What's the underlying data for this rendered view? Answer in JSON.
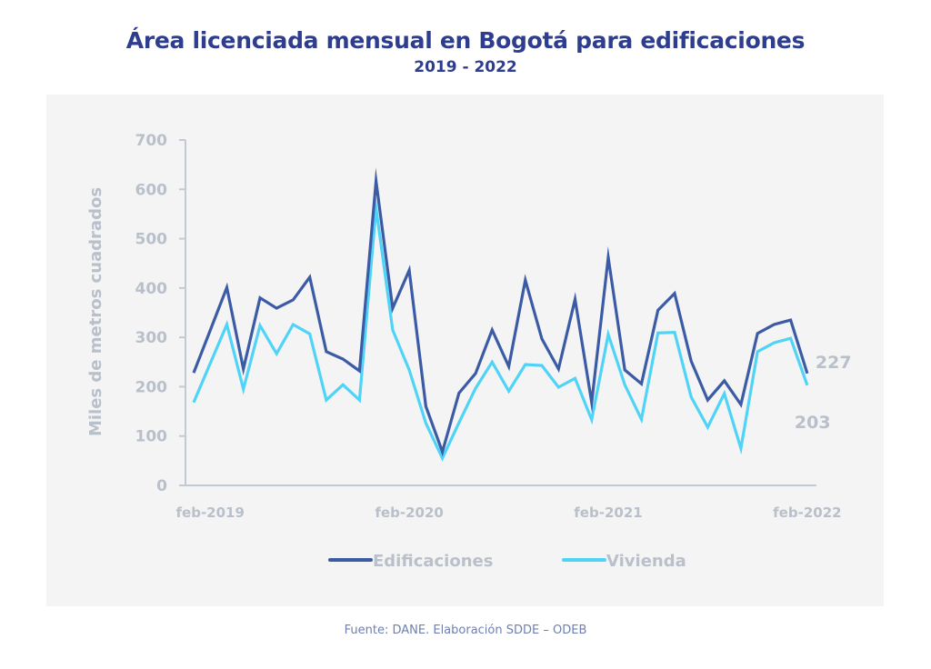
{
  "chart_data": {
    "type": "line",
    "title": "Área licenciada mensual en Bogotá para edificaciones",
    "subtitle": "2019 - 2022",
    "xlabel": "",
    "ylabel": "Miles de metros cuadrados",
    "ylim": [
      0,
      700
    ],
    "yticks": [
      0,
      100,
      200,
      300,
      400,
      500,
      600,
      700
    ],
    "x": [
      "ene-2019",
      "feb-2019",
      "mar-2019",
      "abr-2019",
      "may-2019",
      "jun-2019",
      "jul-2019",
      "ago-2019",
      "sep-2019",
      "oct-2019",
      "nov-2019",
      "dic-2019",
      "ene-2020",
      "feb-2020",
      "mar-2020",
      "abr-2020",
      "may-2020",
      "jun-2020",
      "jul-2020",
      "ago-2020",
      "sep-2020",
      "oct-2020",
      "nov-2020",
      "dic-2020",
      "ene-2021",
      "feb-2021",
      "mar-2021",
      "abr-2021",
      "may-2021",
      "jun-2021",
      "jul-2021",
      "ago-2021",
      "sep-2021",
      "oct-2021",
      "nov-2021",
      "dic-2021",
      "ene-2022",
      "feb-2022"
    ],
    "xtick_labels": [
      {
        "index": 1,
        "label": "feb-2019"
      },
      {
        "index": 13,
        "label": "feb-2020"
      },
      {
        "index": 25,
        "label": "feb-2021"
      },
      {
        "index": 37,
        "label": "feb-2022"
      }
    ],
    "series": [
      {
        "name": "Edificaciones",
        "color": "#3b5ba5",
        "values": [
          228,
          314,
          401,
          236,
          380,
          359,
          376,
          422,
          271,
          256,
          232,
          617,
          359,
          436,
          160,
          68,
          187,
          227,
          315,
          241,
          416,
          297,
          236,
          377,
          168,
          462,
          234,
          206,
          355,
          389,
          252,
          173,
          212,
          164,
          308,
          326,
          335,
          227
        ],
        "end_label": "227"
      },
      {
        "name": "Vivienda",
        "color": "#4fd3f7",
        "values": [
          168,
          247,
          326,
          195,
          324,
          267,
          326,
          307,
          173,
          204,
          173,
          562,
          315,
          234,
          126,
          55,
          127,
          197,
          250,
          191,
          245,
          243,
          199,
          217,
          133,
          306,
          204,
          134,
          309,
          310,
          179,
          118,
          186,
          75,
          271,
          289,
          298,
          203
        ],
        "end_label": "203"
      }
    ],
    "legend": "bottom-center",
    "grid": false
  },
  "footer": {
    "source": "Fuente: DANE. Elaboración SDDE – ODEB"
  }
}
